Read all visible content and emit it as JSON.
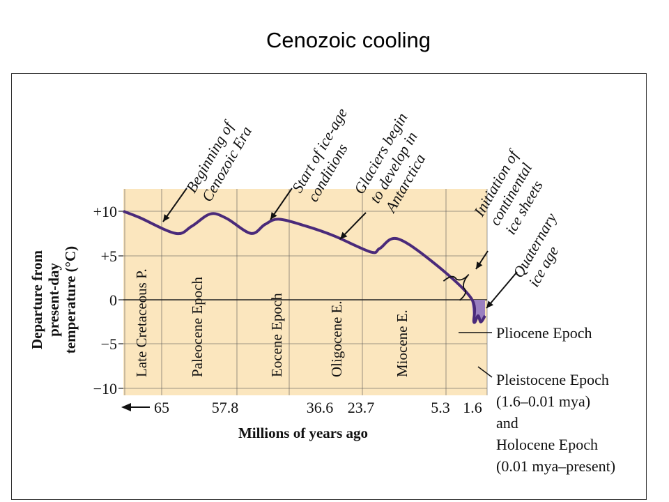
{
  "slide": {
    "title": "Cenozoic cooling"
  },
  "chart_data": {
    "type": "line",
    "ylabel_lines": [
      "Departure from",
      "present-day",
      "temperature (°C)"
    ],
    "xlabel": "Millions of years ago",
    "ylim": [
      -10,
      13
    ],
    "y_ticks": [
      "+10",
      "+5",
      "0",
      "−5",
      "−10"
    ],
    "x_ticks": [
      "65",
      "57.8",
      "36.6",
      "23.7",
      "5.3",
      "1.6"
    ],
    "x_arrow_label": "←",
    "epochs": [
      "Late Cretaceous P.",
      "Paleocene Epoch",
      "Eocene Epoch",
      "Oligocene E.",
      "Miocene E."
    ],
    "series": [
      {
        "values": [
          10,
          9.3,
          7.5,
          8.3,
          9.7,
          9.2,
          7.5,
          8.5,
          9.1,
          8.3,
          7.2,
          5.4,
          5.8,
          6.9,
          4.2,
          0.2,
          -2.5,
          -1.8,
          -2.5,
          -1.8
        ]
      }
    ],
    "annotations": [
      {
        "lines": [
          "Beginning of",
          "Cenozoic Era"
        ]
      },
      {
        "lines": [
          "Start of ice-age",
          "conditions"
        ]
      },
      {
        "lines": [
          "Glaciers begin",
          "to develop in",
          "Antarctica"
        ]
      },
      {
        "lines": [
          "Initiation of",
          "continental",
          "ice sheets"
        ]
      },
      {
        "lines": [
          "Quaternary",
          "ice age"
        ]
      }
    ],
    "side_labels": {
      "pliocene": "Pliocene Epoch",
      "pleistocene": [
        "Pleistocene Epoch",
        "(1.6–0.01 mya)",
        "and",
        "Holocene Epoch",
        "(0.01 mya–present)"
      ]
    },
    "colors": {
      "background": "#FBE6BE",
      "line": "#4A2A7A",
      "fill": "#9A80C0",
      "grid": "#555555"
    }
  }
}
